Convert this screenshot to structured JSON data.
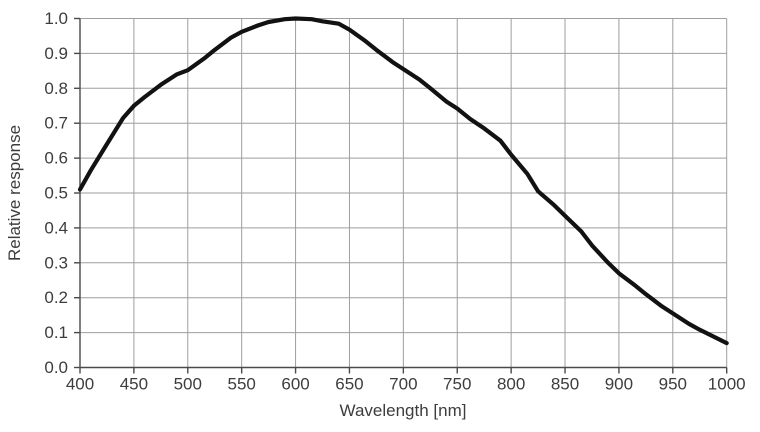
{
  "chart_data": {
    "type": "line",
    "title": "",
    "xlabel": "Wavelength  [nm]",
    "ylabel": "Relative response",
    "xlim": [
      400,
      1000
    ],
    "ylim": [
      0.0,
      1.0
    ],
    "x_ticks": [
      400,
      450,
      500,
      550,
      600,
      650,
      700,
      750,
      800,
      850,
      900,
      950,
      1000
    ],
    "y_tick_labels": [
      "0.0",
      "0.1",
      "0.2",
      "0.3",
      "0.4",
      "0.5",
      "0.6",
      "0.7",
      "0.8",
      "0.9",
      "1.0"
    ],
    "grid": true,
    "legend_position": "none",
    "series": [
      {
        "name": "relative-response",
        "color": "#121212",
        "x": [
          400,
          410,
          425,
          440,
          450,
          460,
          475,
          490,
          500,
          515,
          525,
          540,
          550,
          565,
          575,
          590,
          600,
          615,
          625,
          640,
          650,
          665,
          675,
          690,
          700,
          715,
          725,
          740,
          750,
          762,
          775,
          790,
          800,
          815,
          825,
          840,
          850,
          865,
          875,
          890,
          900,
          915,
          925,
          940,
          950,
          965,
          975,
          990,
          1000
        ],
        "y": [
          0.51,
          0.565,
          0.64,
          0.715,
          0.75,
          0.775,
          0.81,
          0.84,
          0.852,
          0.885,
          0.91,
          0.945,
          0.962,
          0.98,
          0.99,
          0.998,
          1.0,
          0.998,
          0.992,
          0.985,
          0.968,
          0.935,
          0.91,
          0.875,
          0.855,
          0.825,
          0.8,
          0.762,
          0.742,
          0.712,
          0.685,
          0.65,
          0.61,
          0.555,
          0.505,
          0.465,
          0.435,
          0.39,
          0.35,
          0.3,
          0.27,
          0.235,
          0.21,
          0.175,
          0.155,
          0.125,
          0.108,
          0.085,
          0.07
        ]
      }
    ]
  },
  "styles": {
    "curve_color": "#121212",
    "grid_color": "#9e9e9e",
    "axis_color": "#4a4a4a",
    "label_color": "#3d3d3d",
    "background": "#ffffff"
  }
}
